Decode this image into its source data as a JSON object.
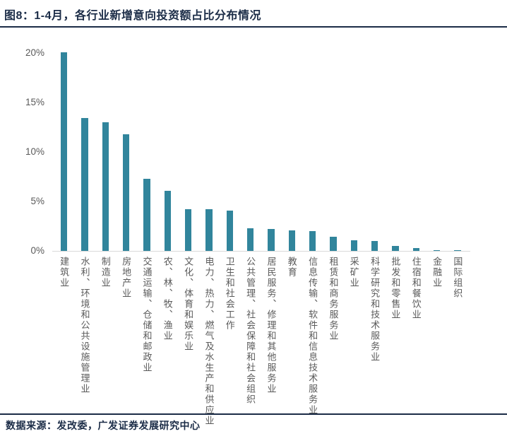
{
  "figure": {
    "title": "图8：1-4月，各行业新增意向投资额占比分布情况",
    "source": "数据来源：发改委，广发证券发展研究中心"
  },
  "colors": {
    "bar": "#31859C",
    "heading_text": "#1B2C47",
    "divider_line": "#1B2C47",
    "axis_line": "#D9D9D9",
    "tick_text": "#595959",
    "category_text": "#5A5A5A"
  },
  "chart_data": {
    "type": "bar",
    "title": "1-4月，各行业新增意向投资额占比分布情况",
    "categories": [
      "建筑业",
      "水利、环境和公共设施管理业",
      "制造业",
      "房地产业",
      "交通运输、仓储和邮政业",
      "农、林、牧、渔业",
      "文化、体育和娱乐业",
      "电力、热力、燃气及水生产和供应业",
      "卫生和社会工作",
      "公共管理、社会保障和社会组织",
      "居民服务、修理和其他服务业",
      "教育",
      "信息传输、软件和信息技术服务业",
      "租赁和商务服务业",
      "采矿业",
      "科学研究和技术服务业",
      "批发和零售业",
      "住宿和餐饮业",
      "金融业",
      "国际组织"
    ],
    "values": [
      20.1,
      13.4,
      13.0,
      11.8,
      7.3,
      6.1,
      4.2,
      4.2,
      4.1,
      2.3,
      2.2,
      2.1,
      2.0,
      1.4,
      1.1,
      1.0,
      0.5,
      0.3,
      0.1,
      0.1
    ],
    "unit": "%",
    "xlabel": "",
    "ylabel": "",
    "ylim": [
      0,
      20
    ],
    "ytick_values": [
      0,
      5,
      10,
      15,
      20
    ],
    "ytick_labels": [
      "0%",
      "5%",
      "10%",
      "15%",
      "20%"
    ],
    "grid": false,
    "legend": "none",
    "bar_color": "#31859C"
  }
}
